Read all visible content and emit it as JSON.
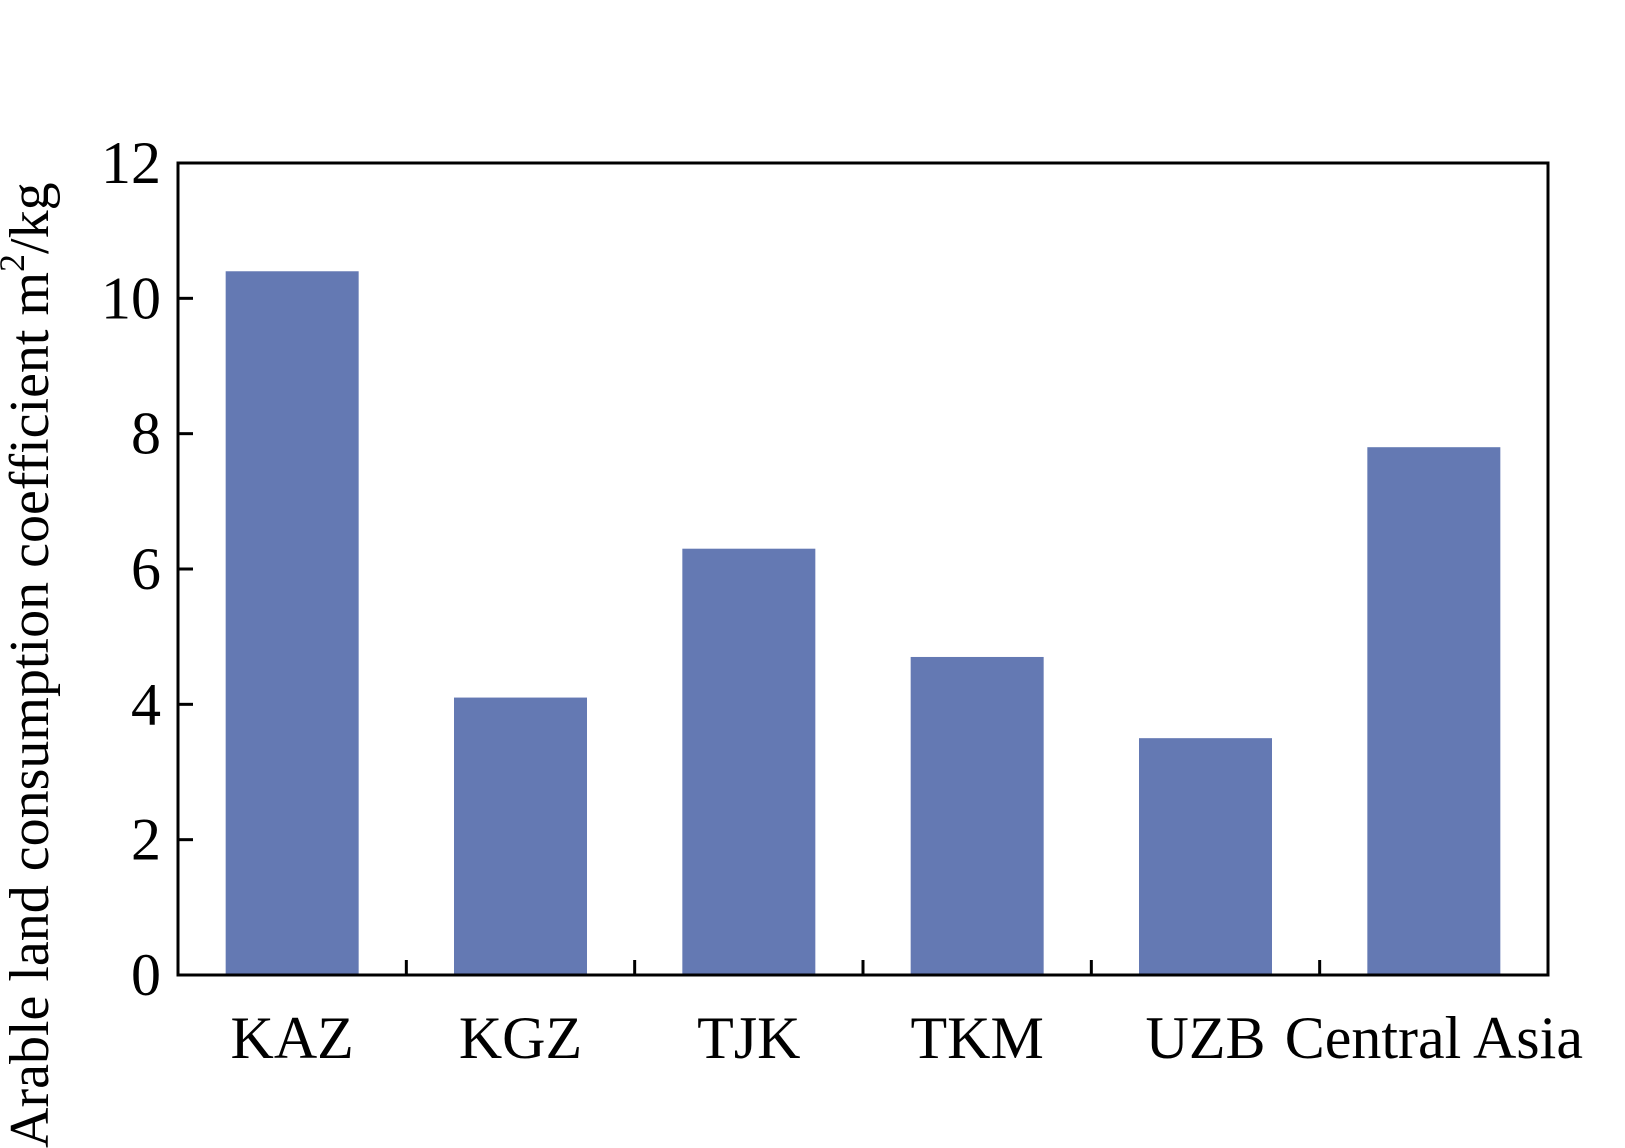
{
  "chart_data": {
    "type": "bar",
    "categories": [
      "KAZ",
      "KGZ",
      "TJK",
      "TKM",
      "UZB",
      "Central Asia"
    ],
    "values": [
      10.4,
      4.1,
      6.3,
      4.7,
      3.5,
      7.8
    ],
    "title": "",
    "xlabel": "",
    "ylabel_main": "Arable land consumption coefficient m",
    "ylabel_sup": "2",
    "ylabel_tail": "/kg",
    "ylim": [
      0,
      12
    ],
    "yticks": [
      "0",
      "2",
      "4",
      "6",
      "8",
      "10",
      "12"
    ],
    "grid": false,
    "legend": "none",
    "bar_color": "#6479b3"
  }
}
